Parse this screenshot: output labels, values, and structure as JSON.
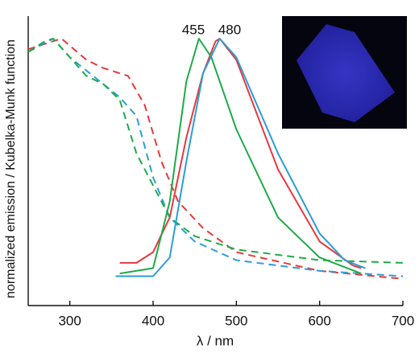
{
  "chart_data": {
    "type": "line",
    "x_label": "λ / nm",
    "y_label": "normalized emission / Kubelka-Munk function",
    "annotations": [
      "455",
      "480"
    ],
    "xlim": [
      250,
      700
    ],
    "xticks": [
      300,
      400,
      500,
      600,
      700
    ],
    "ylim": [
      0,
      1
    ],
    "series": [
      {
        "color": "#e8383d",
        "dashed": true,
        "x": [
          250,
          290,
          320,
          340,
          370,
          390,
          410,
          430,
          460,
          500,
          600,
          700
        ],
        "values": [
          0.96,
          1.0,
          0.92,
          0.89,
          0.86,
          0.75,
          0.54,
          0.39,
          0.29,
          0.2,
          0.13,
          0.1
        ]
      },
      {
        "color": "#2b9dd6",
        "dashed": true,
        "x": [
          250,
          280,
          300,
          340,
          360,
          380,
          400,
          420,
          450,
          500,
          600,
          700
        ],
        "values": [
          0.95,
          1.0,
          0.93,
          0.83,
          0.78,
          0.71,
          0.48,
          0.33,
          0.24,
          0.17,
          0.13,
          0.11
        ]
      },
      {
        "color": "#1faa4a",
        "dashed": true,
        "x": [
          250,
          270,
          280,
          300,
          320,
          340,
          360,
          380,
          400,
          420,
          450,
          500,
          600,
          700
        ],
        "values": [
          0.95,
          0.99,
          1.0,
          0.93,
          0.86,
          0.83,
          0.77,
          0.57,
          0.45,
          0.33,
          0.26,
          0.21,
          0.17,
          0.16
        ]
      },
      {
        "color": "#e8383d",
        "dashed": false,
        "x": [
          360,
          380,
          400,
          420,
          440,
          460,
          475,
          480,
          500,
          550,
          600,
          640,
          650
        ],
        "values": [
          0.16,
          0.16,
          0.2,
          0.33,
          0.63,
          0.87,
          0.99,
          1.0,
          0.92,
          0.51,
          0.24,
          0.15,
          0.14
        ]
      },
      {
        "color": "#1faa4a",
        "dashed": false,
        "x": [
          360,
          400,
          420,
          440,
          455,
          470,
          500,
          550,
          600,
          650
        ],
        "values": [
          0.12,
          0.14,
          0.39,
          0.84,
          1.0,
          0.93,
          0.66,
          0.33,
          0.18,
          0.12
        ]
      },
      {
        "color": "#2b9dd6",
        "dashed": false,
        "x": [
          355,
          400,
          420,
          440,
          460,
          480,
          500,
          550,
          600,
          630,
          655
        ],
        "values": [
          0.11,
          0.11,
          0.18,
          0.54,
          0.87,
          1.0,
          0.93,
          0.57,
          0.27,
          0.17,
          0.14
        ]
      }
    ]
  }
}
